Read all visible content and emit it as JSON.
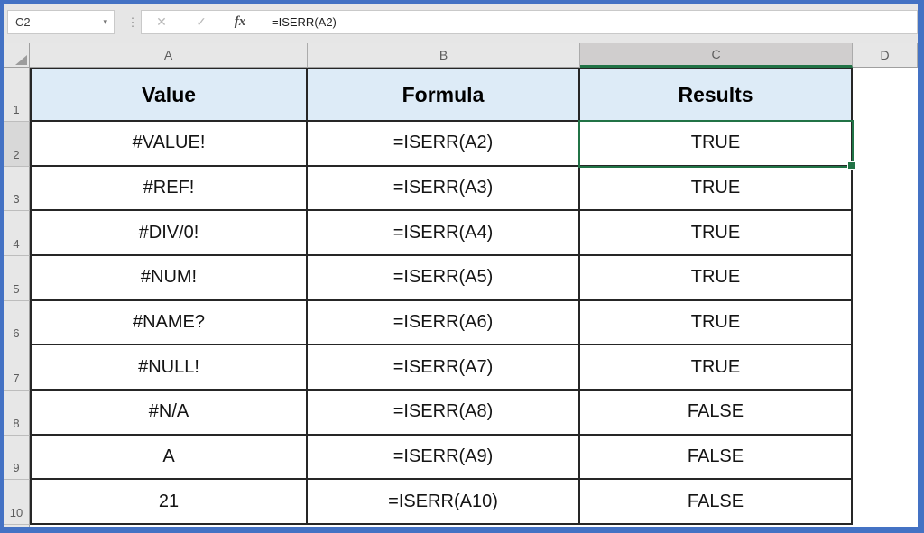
{
  "formula_bar": {
    "name_box_value": "C2",
    "dropdown_icon": "▾",
    "grip_icon": "⋮",
    "cancel_icon": "✕",
    "enter_icon": "✓",
    "function_icon": "fx",
    "formula_text": "=ISERR(A2)"
  },
  "sheet": {
    "column_headers": [
      "A",
      "B",
      "C",
      "D"
    ],
    "row_headers": [
      "1",
      "2",
      "3",
      "4",
      "5",
      "6",
      "7",
      "8",
      "9",
      "10"
    ],
    "selected_cell": "C2",
    "selected_column": "C",
    "selected_row": "2"
  },
  "table": {
    "headers": {
      "value": "Value",
      "formula": "Formula",
      "results": "Results"
    },
    "rows": [
      {
        "value": "#VALUE!",
        "formula": "=ISERR(A2)",
        "result": "TRUE"
      },
      {
        "value": "#REF!",
        "formula": "=ISERR(A3)",
        "result": "TRUE"
      },
      {
        "value": "#DIV/0!",
        "formula": "=ISERR(A4)",
        "result": "TRUE"
      },
      {
        "value": "#NUM!",
        "formula": "=ISERR(A5)",
        "result": "TRUE"
      },
      {
        "value": "#NAME?",
        "formula": "=ISERR(A6)",
        "result": "TRUE"
      },
      {
        "value": "#NULL!",
        "formula": "=ISERR(A7)",
        "result": "TRUE"
      },
      {
        "value": "#N/A",
        "formula": "=ISERR(A8)",
        "result": "FALSE"
      },
      {
        "value": "A",
        "formula": "=ISERR(A9)",
        "result": "FALSE"
      },
      {
        "value": "21",
        "formula": "=ISERR(A10)",
        "result": "FALSE"
      }
    ]
  },
  "colors": {
    "window_border": "#4472C4",
    "selection_green": "#217346",
    "header_fill": "#DDEBF7",
    "chrome_gray": "#E6E6E6"
  }
}
